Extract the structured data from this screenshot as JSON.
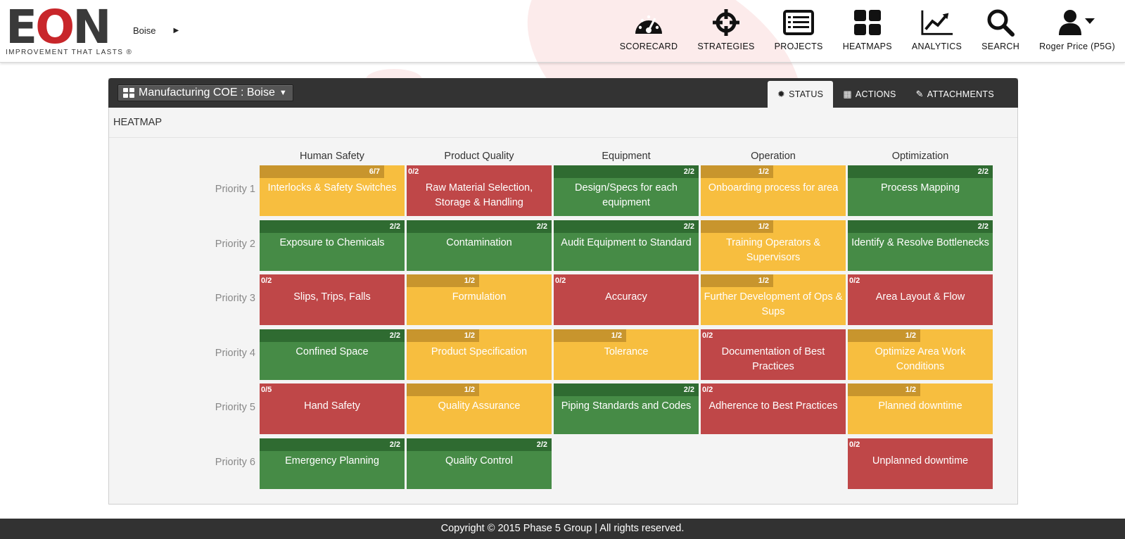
{
  "app": {
    "logo_text_e": "E",
    "logo_text_o": "O",
    "logo_text_n": "N",
    "logo_tagline": "IMPROVEMENT THAT LASTS ®",
    "breadcrumb": "Boise"
  },
  "nav": {
    "items": [
      {
        "label": "SCORECARD",
        "icon": "speedometer-icon"
      },
      {
        "label": "STRATEGIES",
        "icon": "crosshair-icon"
      },
      {
        "label": "PROJECTS",
        "icon": "list-icon"
      },
      {
        "label": "HEATMAPS",
        "icon": "grid-icon"
      },
      {
        "label": "ANALYTICS",
        "icon": "line-chart-icon"
      },
      {
        "label": "SEARCH",
        "icon": "search-icon"
      },
      {
        "label": "Roger Price (P5G)",
        "icon": "user-icon"
      }
    ]
  },
  "panel": {
    "location": "Manufacturing COE : Boise",
    "tabs": [
      {
        "label": "STATUS",
        "icon": "cog-icon",
        "active": true
      },
      {
        "label": "ACTIONS",
        "icon": "calendar-icon",
        "active": false
      },
      {
        "label": "ATTACHMENTS",
        "icon": "paperclip-icon",
        "active": false
      }
    ],
    "section_title": "HEATMAP"
  },
  "heatmap": {
    "columns": [
      "Human Safety",
      "Product Quality",
      "Equipment",
      "Operation",
      "Optimization"
    ],
    "rows": [
      "Priority 1",
      "Priority 2",
      "Priority 3",
      "Priority 4",
      "Priority 5",
      "Priority 6"
    ],
    "colors": {
      "green": "#468b46",
      "yellow": "#f7be3f",
      "red": "#bf4748"
    },
    "cells": [
      [
        {
          "title": "Interlocks & Safety Switches",
          "fraction": "6/7",
          "progress": 0.857,
          "status": "yellow"
        },
        {
          "title": "Raw Material Selection, Storage & Handling",
          "fraction": "0/2",
          "progress": 0,
          "status": "red"
        },
        {
          "title": "Design/Specs for each equipment",
          "fraction": "2/2",
          "progress": 1,
          "status": "green"
        },
        {
          "title": "Onboarding process for area",
          "fraction": "1/2",
          "progress": 0.5,
          "status": "yellow"
        },
        {
          "title": "Process Mapping",
          "fraction": "2/2",
          "progress": 1,
          "status": "green"
        }
      ],
      [
        {
          "title": "Exposure to Chemicals",
          "fraction": "2/2",
          "progress": 1,
          "status": "green"
        },
        {
          "title": "Contamination",
          "fraction": "2/2",
          "progress": 1,
          "status": "green"
        },
        {
          "title": "Audit Equipment to Standard",
          "fraction": "2/2",
          "progress": 1,
          "status": "green"
        },
        {
          "title": "Training Operators & Supervisors",
          "fraction": "1/2",
          "progress": 0.5,
          "status": "yellow"
        },
        {
          "title": "Identify & Resolve Bottlenecks",
          "fraction": "2/2",
          "progress": 1,
          "status": "green"
        }
      ],
      [
        {
          "title": "Slips, Trips, Falls",
          "fraction": "0/2",
          "progress": 0,
          "status": "red"
        },
        {
          "title": "Formulation",
          "fraction": "1/2",
          "progress": 0.5,
          "status": "yellow"
        },
        {
          "title": "Accuracy",
          "fraction": "0/2",
          "progress": 0,
          "status": "red"
        },
        {
          "title": "Further Development of Ops & Sups",
          "fraction": "1/2",
          "progress": 0.5,
          "status": "yellow"
        },
        {
          "title": "Area Layout & Flow",
          "fraction": "0/2",
          "progress": 0,
          "status": "red"
        }
      ],
      [
        {
          "title": "Confined Space",
          "fraction": "2/2",
          "progress": 1,
          "status": "green"
        },
        {
          "title": "Product Specification",
          "fraction": "1/2",
          "progress": 0.5,
          "status": "yellow"
        },
        {
          "title": "Tolerance",
          "fraction": "1/2",
          "progress": 0.5,
          "status": "yellow"
        },
        {
          "title": "Documentation of Best Practices",
          "fraction": "0/2",
          "progress": 0,
          "status": "red"
        },
        {
          "title": "Optimize Area Work Conditions",
          "fraction": "1/2",
          "progress": 0.5,
          "status": "yellow"
        }
      ],
      [
        {
          "title": "Hand Safety",
          "fraction": "0/5",
          "progress": 0,
          "status": "red"
        },
        {
          "title": "Quality Assurance",
          "fraction": "1/2",
          "progress": 0.5,
          "status": "yellow"
        },
        {
          "title": "Piping Standards and Codes",
          "fraction": "2/2",
          "progress": 1,
          "status": "green"
        },
        {
          "title": "Adherence to Best Practices",
          "fraction": "0/2",
          "progress": 0,
          "status": "red"
        },
        {
          "title": "Planned downtime",
          "fraction": "1/2",
          "progress": 0.5,
          "status": "yellow"
        }
      ],
      [
        {
          "title": "Emergency Planning",
          "fraction": "2/2",
          "progress": 1,
          "status": "green"
        },
        {
          "title": "Quality Control",
          "fraction": "2/2",
          "progress": 1,
          "status": "green"
        },
        null,
        null,
        {
          "title": "Unplanned downtime",
          "fraction": "0/2",
          "progress": 0,
          "status": "red"
        }
      ]
    ]
  },
  "footer": {
    "text": "Copyright © 2015 Phase 5 Group | All rights reserved."
  }
}
